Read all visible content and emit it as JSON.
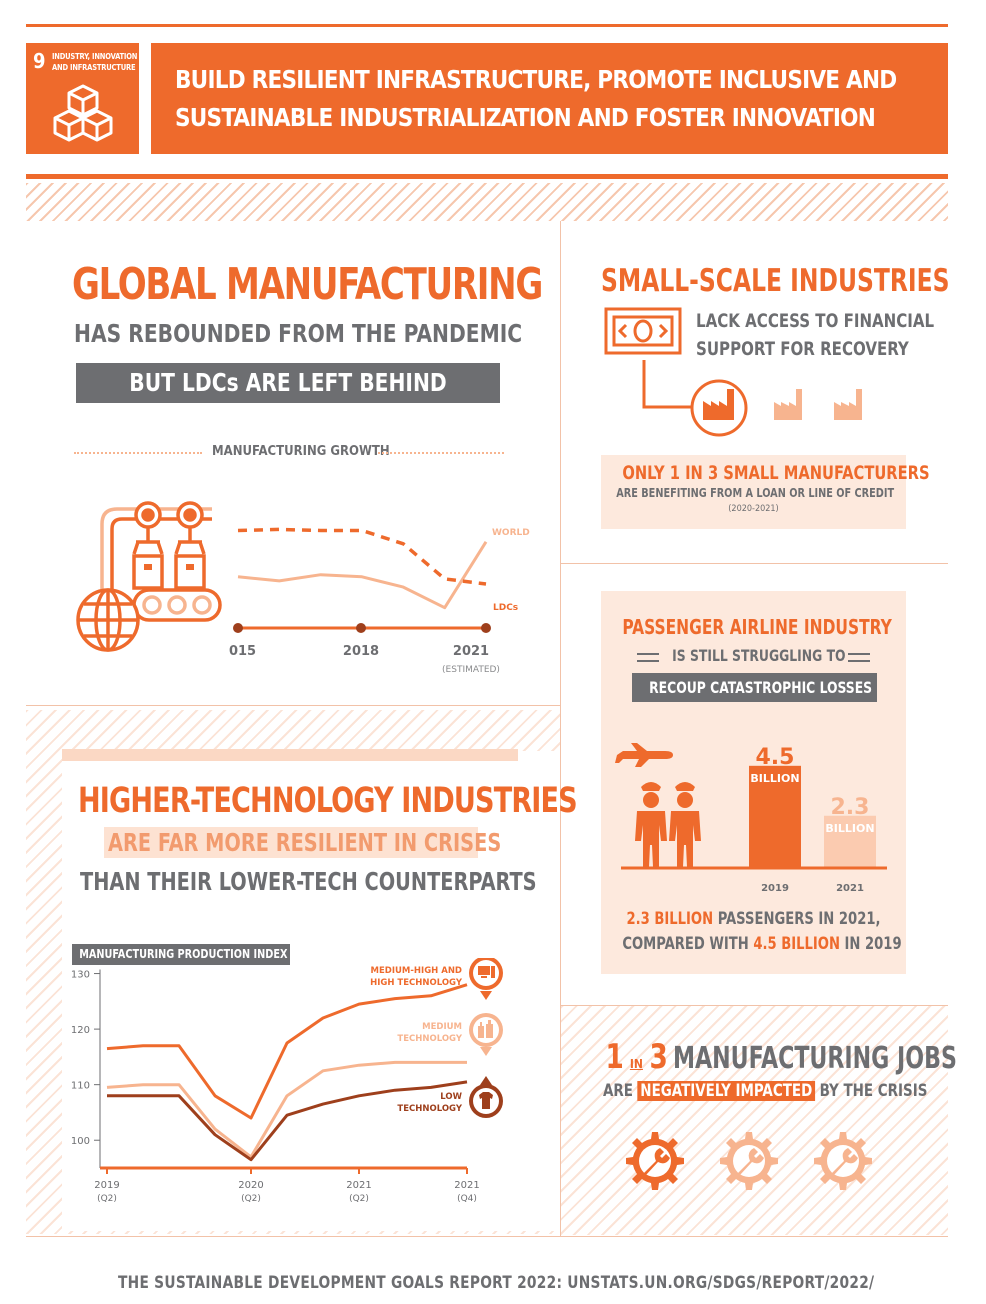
{
  "colors": {
    "orange": "#ee6a2c",
    "light_orange": "#f7b48f",
    "peach": "#fde9dd",
    "grey": "#6d6e71",
    "dark": "#9e3f1c"
  },
  "header": {
    "badge_number": "9",
    "badge_label_line1": "INDUSTRY, INNOVATION",
    "badge_label_line2": "AND INFRASTRUCTURE",
    "badge_icon": "cubes-icon",
    "title_line1": "BUILD RESILIENT INFRASTRUCTURE, PROMOTE INCLUSIVE AND",
    "title_line2": "SUSTAINABLE INDUSTRIALIZATION AND FOSTER INNOVATION"
  },
  "manufacturing": {
    "title": "GLOBAL MANUFACTURING",
    "subtitle": "HAS REBOUNDED FROM THE PANDEMIC",
    "banner": "BUT LDCs ARE LEFT BEHIND",
    "chart_label": "MANUFACTURING GROWTH",
    "icon": "factory-robot-icon"
  },
  "small_scale": {
    "title": "SMALL-SCALE INDUSTRIES",
    "line1": "LACK ACCESS TO FINANCIAL",
    "line2": "SUPPORT FOR RECOVERY",
    "highlight": "ONLY 1 IN 3 SMALL MANUFACTURERS",
    "detail": "ARE BENEFITING FROM A LOAN OR LINE OF CREDIT",
    "period": "(2020-2021)"
  },
  "airline": {
    "title": "PASSENGER AIRLINE INDUSTRY",
    "middle": "IS STILL STRUGGLING TO",
    "banner": "RECOUP CATASTROPHIC LOSSES",
    "caption_a_num": "2.3 BILLION",
    "caption_a_rest": " PASSENGERS IN 2021,",
    "caption_b_pre": "COMPARED WITH ",
    "caption_b_num": "4.5 BILLION",
    "caption_b_post": " IN 2019"
  },
  "hightech": {
    "title": "HIGHER-TECHNOLOGY INDUSTRIES",
    "line2": "ARE FAR MORE RESILIENT IN CRISES",
    "line3": "THAN THEIR LOWER-TECH COUNTERPARTS",
    "chart_label": "MANUFACTURING PRODUCTION INDEX"
  },
  "jobs": {
    "one": "1",
    "in": "IN",
    "three": "3",
    "title_rest": " MANUFACTURING JOBS",
    "are": "ARE ",
    "impacted": "NEGATIVELY IMPACTED",
    "by_crisis": " BY THE CRISIS"
  },
  "footer": "THE SUSTAINABLE DEVELOPMENT GOALS REPORT 2022: UNSTATS.UN.ORG/SDGS/REPORT/2022/",
  "chart_data": [
    {
      "type": "line",
      "x": [
        "2015",
        "2016",
        "2017",
        "2018",
        "2019",
        "2020",
        "2021"
      ],
      "x_tick_labels": [
        "2015",
        "2018",
        "2021"
      ],
      "x_note": "(ESTIMATED)",
      "series": [
        {
          "name": "WORLD",
          "values": [
            3.0,
            2.6,
            3.2,
            3.0,
            2.0,
            0.0,
            6.4
          ],
          "style": "solid",
          "color": "#f7b48f"
        },
        {
          "name": "LDCs",
          "values": [
            7.5,
            7.6,
            7.5,
            7.5,
            6.2,
            2.8,
            2.3
          ],
          "style": "dashed",
          "color": "#ee6a2c"
        }
      ],
      "ylim": [
        -1,
        9
      ]
    },
    {
      "type": "line",
      "y_ticks": [
        100,
        110,
        120,
        130
      ],
      "ylim": [
        95,
        131
      ],
      "x_tick_labels": [
        "2019",
        "2020",
        "2021",
        "2021"
      ],
      "x_tick_sublabels": [
        "(Q2)",
        "(Q2)",
        "(Q2)",
        "(Q4)"
      ],
      "x": [
        "2019 Q2",
        "2019 Q3",
        "2019 Q4",
        "2020 Q1",
        "2020 Q2",
        "2020 Q3",
        "2020 Q4",
        "2021 Q1",
        "2021 Q2",
        "2021 Q3",
        "2021 Q4"
      ],
      "series": [
        {
          "name": "MEDIUM-HIGH AND HIGH TECHNOLOGY",
          "values": [
            116.5,
            117,
            117,
            108,
            104,
            117.5,
            122,
            124.5,
            125.5,
            126,
            128
          ],
          "color": "#ee6a2c",
          "icon": "computer-icon"
        },
        {
          "name": "MEDIUM TECHNOLOGY",
          "values": [
            109.5,
            110,
            110,
            102,
            97,
            108,
            112.5,
            113.5,
            114,
            114,
            114
          ],
          "color": "#f7b48f",
          "icon": "bottles-icon"
        },
        {
          "name": "LOW TECHNOLOGY",
          "values": [
            108,
            108,
            108,
            101,
            96.5,
            104.5,
            106.5,
            108,
            109,
            109.5,
            110.5
          ],
          "color": "#9e3f1c",
          "icon": "tshirt-icon"
        }
      ]
    },
    {
      "type": "bar",
      "categories": [
        "2019",
        "2021"
      ],
      "values": [
        4.5,
        2.3
      ],
      "value_labels": [
        "4.5",
        "2.3"
      ],
      "unit_label": "BILLION",
      "ylim": [
        0,
        4.8
      ]
    }
  ]
}
